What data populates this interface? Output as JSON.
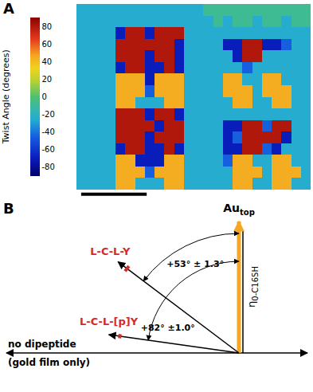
{
  "chart_data": {
    "type": "heatmap",
    "annotations": [
      "A"
    ],
    "tick_labels": false,
    "colorbar": {
      "title": "Twist Angle (degrees)",
      "range": [
        -90,
        90
      ],
      "ticks": [
        -80,
        -60,
        -40,
        -20,
        0,
        20,
        40,
        60,
        80
      ]
    },
    "z": [
      [
        -25,
        -25,
        -25,
        -25,
        -25,
        -25,
        -25,
        -25,
        -25,
        -25,
        -25,
        -25,
        -25,
        -8,
        -8,
        -8,
        -8,
        -8,
        -8,
        -8,
        -8,
        -8,
        -8,
        -8
      ],
      [
        -25,
        -25,
        -25,
        -25,
        -25,
        -25,
        -25,
        -25,
        -25,
        -25,
        -25,
        -25,
        -25,
        -25,
        -8,
        -25,
        -8,
        -8,
        -25,
        -8,
        -8,
        -25,
        -8,
        -8
      ],
      [
        -25,
        -25,
        -25,
        -25,
        -70,
        80,
        80,
        -70,
        80,
        80,
        80,
        -25,
        -25,
        -25,
        -25,
        -25,
        -25,
        -25,
        -25,
        -25,
        -25,
        -25,
        -25,
        -25
      ],
      [
        -25,
        -25,
        -25,
        -25,
        80,
        80,
        80,
        80,
        80,
        80,
        -70,
        -25,
        -25,
        -25,
        -25,
        -70,
        -70,
        80,
        80,
        -70,
        -70,
        -45,
        -25,
        -25
      ],
      [
        -25,
        -25,
        -25,
        -25,
        80,
        80,
        80,
        -70,
        80,
        80,
        -70,
        -25,
        -25,
        -25,
        -25,
        -25,
        -70,
        80,
        80,
        -25,
        -25,
        -25,
        -25,
        -25
      ],
      [
        -25,
        -25,
        -25,
        -25,
        -70,
        80,
        80,
        -70,
        -70,
        80,
        -70,
        -25,
        -25,
        -25,
        -25,
        -25,
        -25,
        -45,
        -25,
        -25,
        -25,
        -25,
        -25,
        -25
      ],
      [
        -25,
        -25,
        -25,
        -25,
        45,
        45,
        45,
        -70,
        45,
        45,
        45,
        -25,
        -25,
        -25,
        -25,
        45,
        45,
        -25,
        -25,
        45,
        45,
        -25,
        -25,
        -25
      ],
      [
        -25,
        -25,
        -25,
        -25,
        45,
        45,
        45,
        -45,
        45,
        45,
        45,
        -25,
        -25,
        -25,
        -25,
        45,
        45,
        45,
        -25,
        45,
        45,
        45,
        -25,
        -25
      ],
      [
        -25,
        -25,
        -25,
        -25,
        45,
        45,
        -25,
        -25,
        -25,
        45,
        45,
        -25,
        -25,
        -25,
        -25,
        -25,
        45,
        45,
        -25,
        -25,
        45,
        45,
        -25,
        -25
      ],
      [
        -25,
        -25,
        -25,
        -25,
        80,
        80,
        80,
        -70,
        80,
        80,
        -70,
        -25,
        -25,
        -25,
        -25,
        -25,
        -25,
        -25,
        -25,
        -25,
        -25,
        -25,
        -25,
        -25
      ],
      [
        -25,
        -25,
        -25,
        -25,
        80,
        80,
        80,
        80,
        -70,
        80,
        80,
        -25,
        -25,
        -25,
        -25,
        -70,
        -70,
        80,
        80,
        -45,
        80,
        80,
        -25,
        -25
      ],
      [
        -25,
        -25,
        -25,
        -25,
        80,
        80,
        80,
        -70,
        80,
        80,
        80,
        -25,
        -25,
        -25,
        -25,
        -70,
        -45,
        80,
        80,
        80,
        80,
        -70,
        -25,
        -25
      ],
      [
        -25,
        -25,
        -25,
        -25,
        -70,
        80,
        80,
        -70,
        -70,
        80,
        -70,
        -25,
        -25,
        -25,
        -25,
        -70,
        -70,
        80,
        80,
        -45,
        -70,
        -25,
        -25,
        -25
      ],
      [
        -25,
        -25,
        -25,
        -25,
        45,
        45,
        -70,
        -70,
        -70,
        45,
        45,
        -25,
        -25,
        -25,
        -25,
        -45,
        45,
        45,
        -25,
        -25,
        45,
        45,
        -25,
        -25
      ],
      [
        -25,
        -25,
        -25,
        -25,
        45,
        45,
        45,
        -45,
        45,
        45,
        45,
        -25,
        -25,
        -25,
        -25,
        -25,
        45,
        45,
        45,
        -25,
        45,
        45,
        45,
        -25
      ],
      [
        -25,
        -25,
        -25,
        -25,
        45,
        45,
        -25,
        -25,
        -25,
        45,
        45,
        -25,
        -25,
        -25,
        -25,
        -25,
        45,
        45,
        -25,
        -25,
        45,
        45,
        -25,
        -25
      ]
    ]
  },
  "diagram": {
    "label": "B",
    "reference": {
      "text": "Au",
      "subscript": "top"
    },
    "normal": {
      "symbol": "η",
      "subscript": "0-C16SH"
    },
    "baseline": {
      "lines": [
        "no dipeptide",
        "(gold film only)"
      ]
    },
    "vectors": [
      {
        "text": "L-C-L-Y",
        "color": "#d42a2a",
        "angle": 53,
        "error": 1.3,
        "angle_label": "+53° ± 1.3°"
      },
      {
        "text": "L-C-L-[p]Y",
        "color": "#d42a2a",
        "angle": 82,
        "error": 1.0,
        "angle_label": "+82° ±1.0°"
      }
    ]
  }
}
